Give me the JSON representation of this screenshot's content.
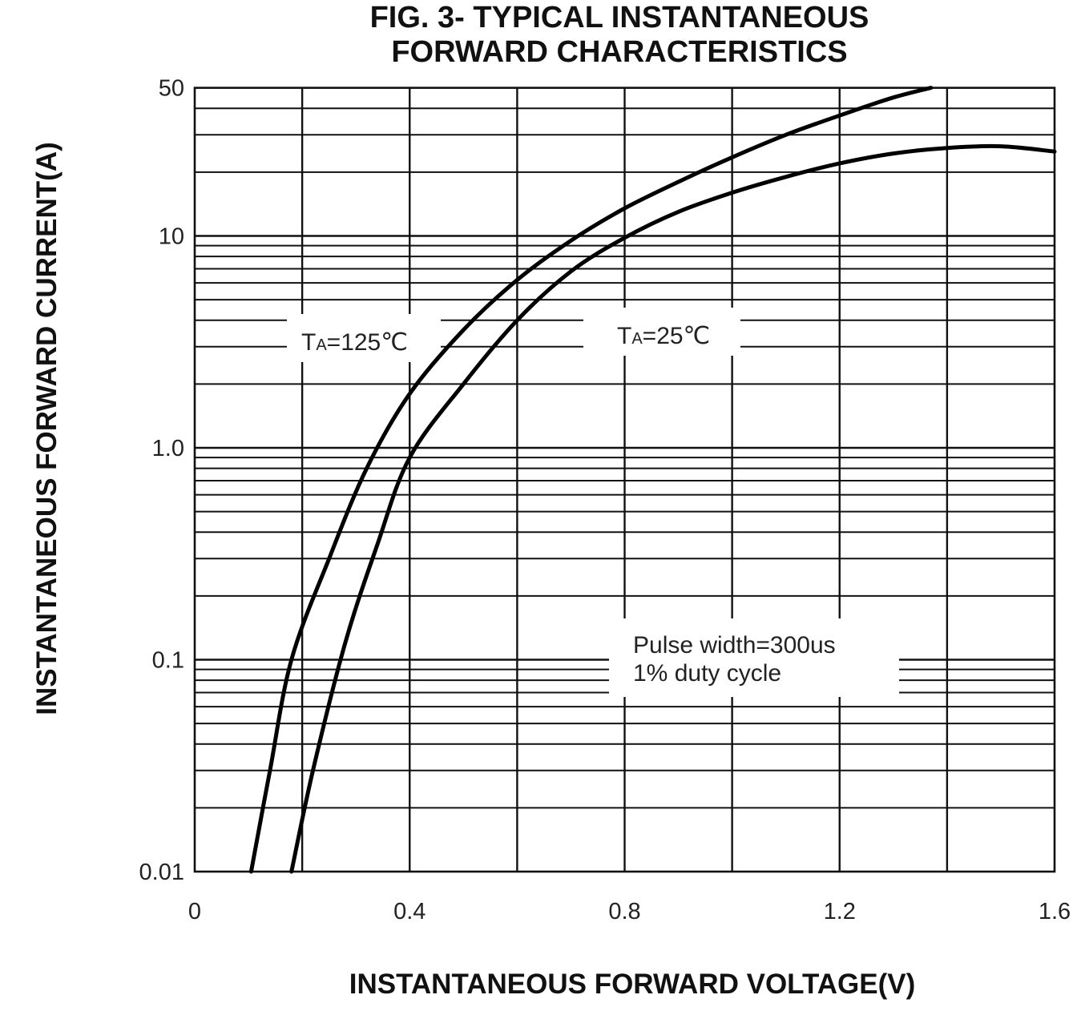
{
  "chart_data": {
    "type": "line",
    "title": [
      "FIG. 3- TYPICAL INSTANTANEOUS",
      "FORWARD CHARACTERISTICS"
    ],
    "xlabel": "INSTANTANEOUS FORWARD VOLTAGE(V)",
    "ylabel": "INSTANTANEOUS FORWARD CURRENT(A)",
    "xlim": [
      0,
      1.6
    ],
    "ylim": [
      0.01,
      50
    ],
    "yscale": "log",
    "grid": true,
    "x_ticks": [
      {
        "value": 0,
        "label": "0"
      },
      {
        "value": 0.4,
        "label": "0.4"
      },
      {
        "value": 0.8,
        "label": "0.8"
      },
      {
        "value": 1.2,
        "label": "1.2"
      },
      {
        "value": 1.6,
        "label": "1.6"
      }
    ],
    "y_ticks": [
      {
        "value": 0.01,
        "label": "0.01"
      },
      {
        "value": 0.1,
        "label": "0.1"
      },
      {
        "value": 1,
        "label": "1.0"
      },
      {
        "value": 10,
        "label": "10"
      },
      {
        "value": 50,
        "label": "50"
      }
    ],
    "series": [
      {
        "name": "TA=125℃",
        "label_main": "T",
        "label_sub": "A",
        "label_rest": "=125℃",
        "x": [
          0.105,
          0.14,
          0.18,
          0.25,
          0.32,
          0.4,
          0.5,
          0.6,
          0.7,
          0.8,
          0.9,
          1.0,
          1.1,
          1.2,
          1.3,
          1.37
        ],
        "y": [
          0.01,
          0.03,
          0.1,
          0.3,
          0.8,
          1.8,
          3.6,
          6.2,
          9.5,
          13.5,
          18,
          23.5,
          30,
          37,
          45,
          50
        ]
      },
      {
        "name": "TA=25℃",
        "label_main": "T",
        "label_sub": "A",
        "label_rest": "=25℃",
        "x": [
          0.18,
          0.22,
          0.28,
          0.34,
          0.4,
          0.5,
          0.6,
          0.7,
          0.8,
          0.9,
          1.0,
          1.1,
          1.2,
          1.3,
          1.4,
          1.5,
          1.6
        ],
        "y": [
          0.01,
          0.03,
          0.12,
          0.35,
          0.9,
          2.0,
          4.0,
          6.8,
          9.8,
          13,
          16,
          19,
          22,
          24.5,
          26,
          26.5,
          25
        ]
      }
    ],
    "annotations": [
      "Pulse width=300us",
      "1% duty cycle"
    ]
  }
}
